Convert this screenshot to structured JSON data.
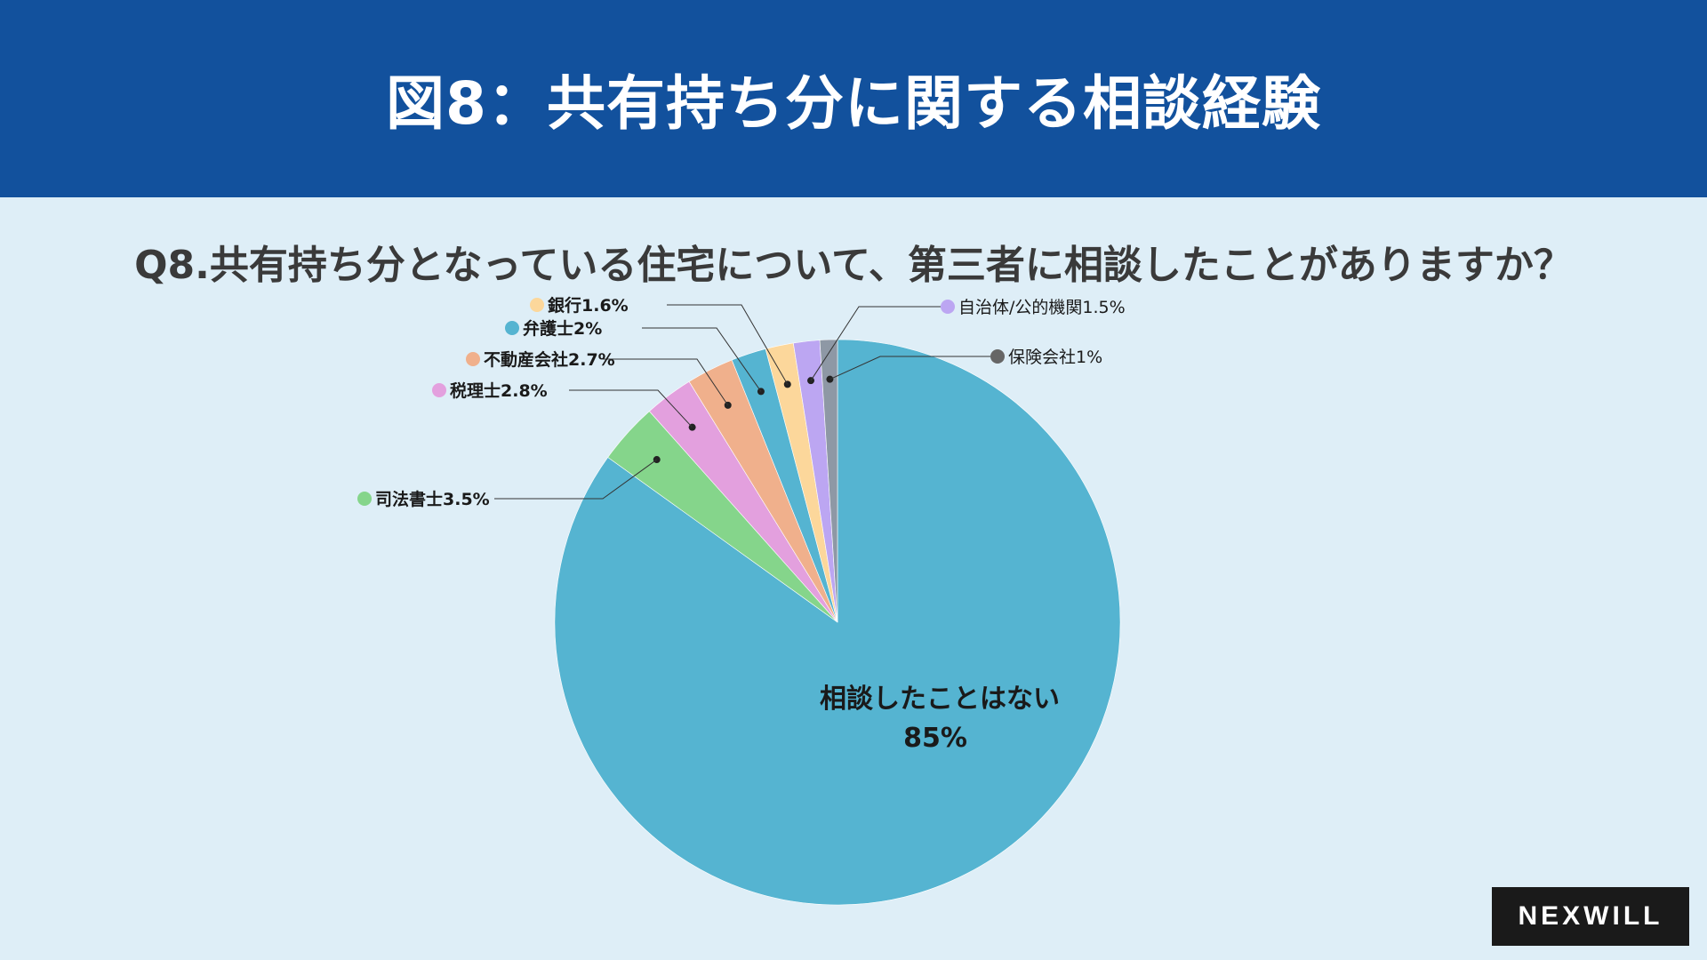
{
  "header": {
    "title": "図8：共有持ち分に関する相談経験"
  },
  "brand": {
    "logo_text": "NEXWILL"
  },
  "chart_data": {
    "type": "pie",
    "title": "Q8.共有持ち分となっている住宅について、第三者に相談したことがありますか？",
    "slices": [
      {
        "label": "相談したことはない",
        "value_label": "85%",
        "value": 85,
        "color": "#55b4d1"
      },
      {
        "label": "司法書士3.5%",
        "value": 3.5,
        "color": "#85d58b"
      },
      {
        "label": "税理士2.8%",
        "value": 2.8,
        "color": "#e3a0de"
      },
      {
        "label": "不動産会社2.7%",
        "value": 2.7,
        "color": "#f0b08c"
      },
      {
        "label": "弁護士2%",
        "value": 2,
        "color": "#55b4d1"
      },
      {
        "label": "銀行1.6%",
        "value": 1.6,
        "color": "#fcd79b"
      },
      {
        "label": "自治体/公的機関1.5%",
        "value": 1.5,
        "color": "#bca6f2"
      },
      {
        "label": "保険会社1%",
        "value": 1,
        "color": "#8e98a5"
      }
    ]
  }
}
